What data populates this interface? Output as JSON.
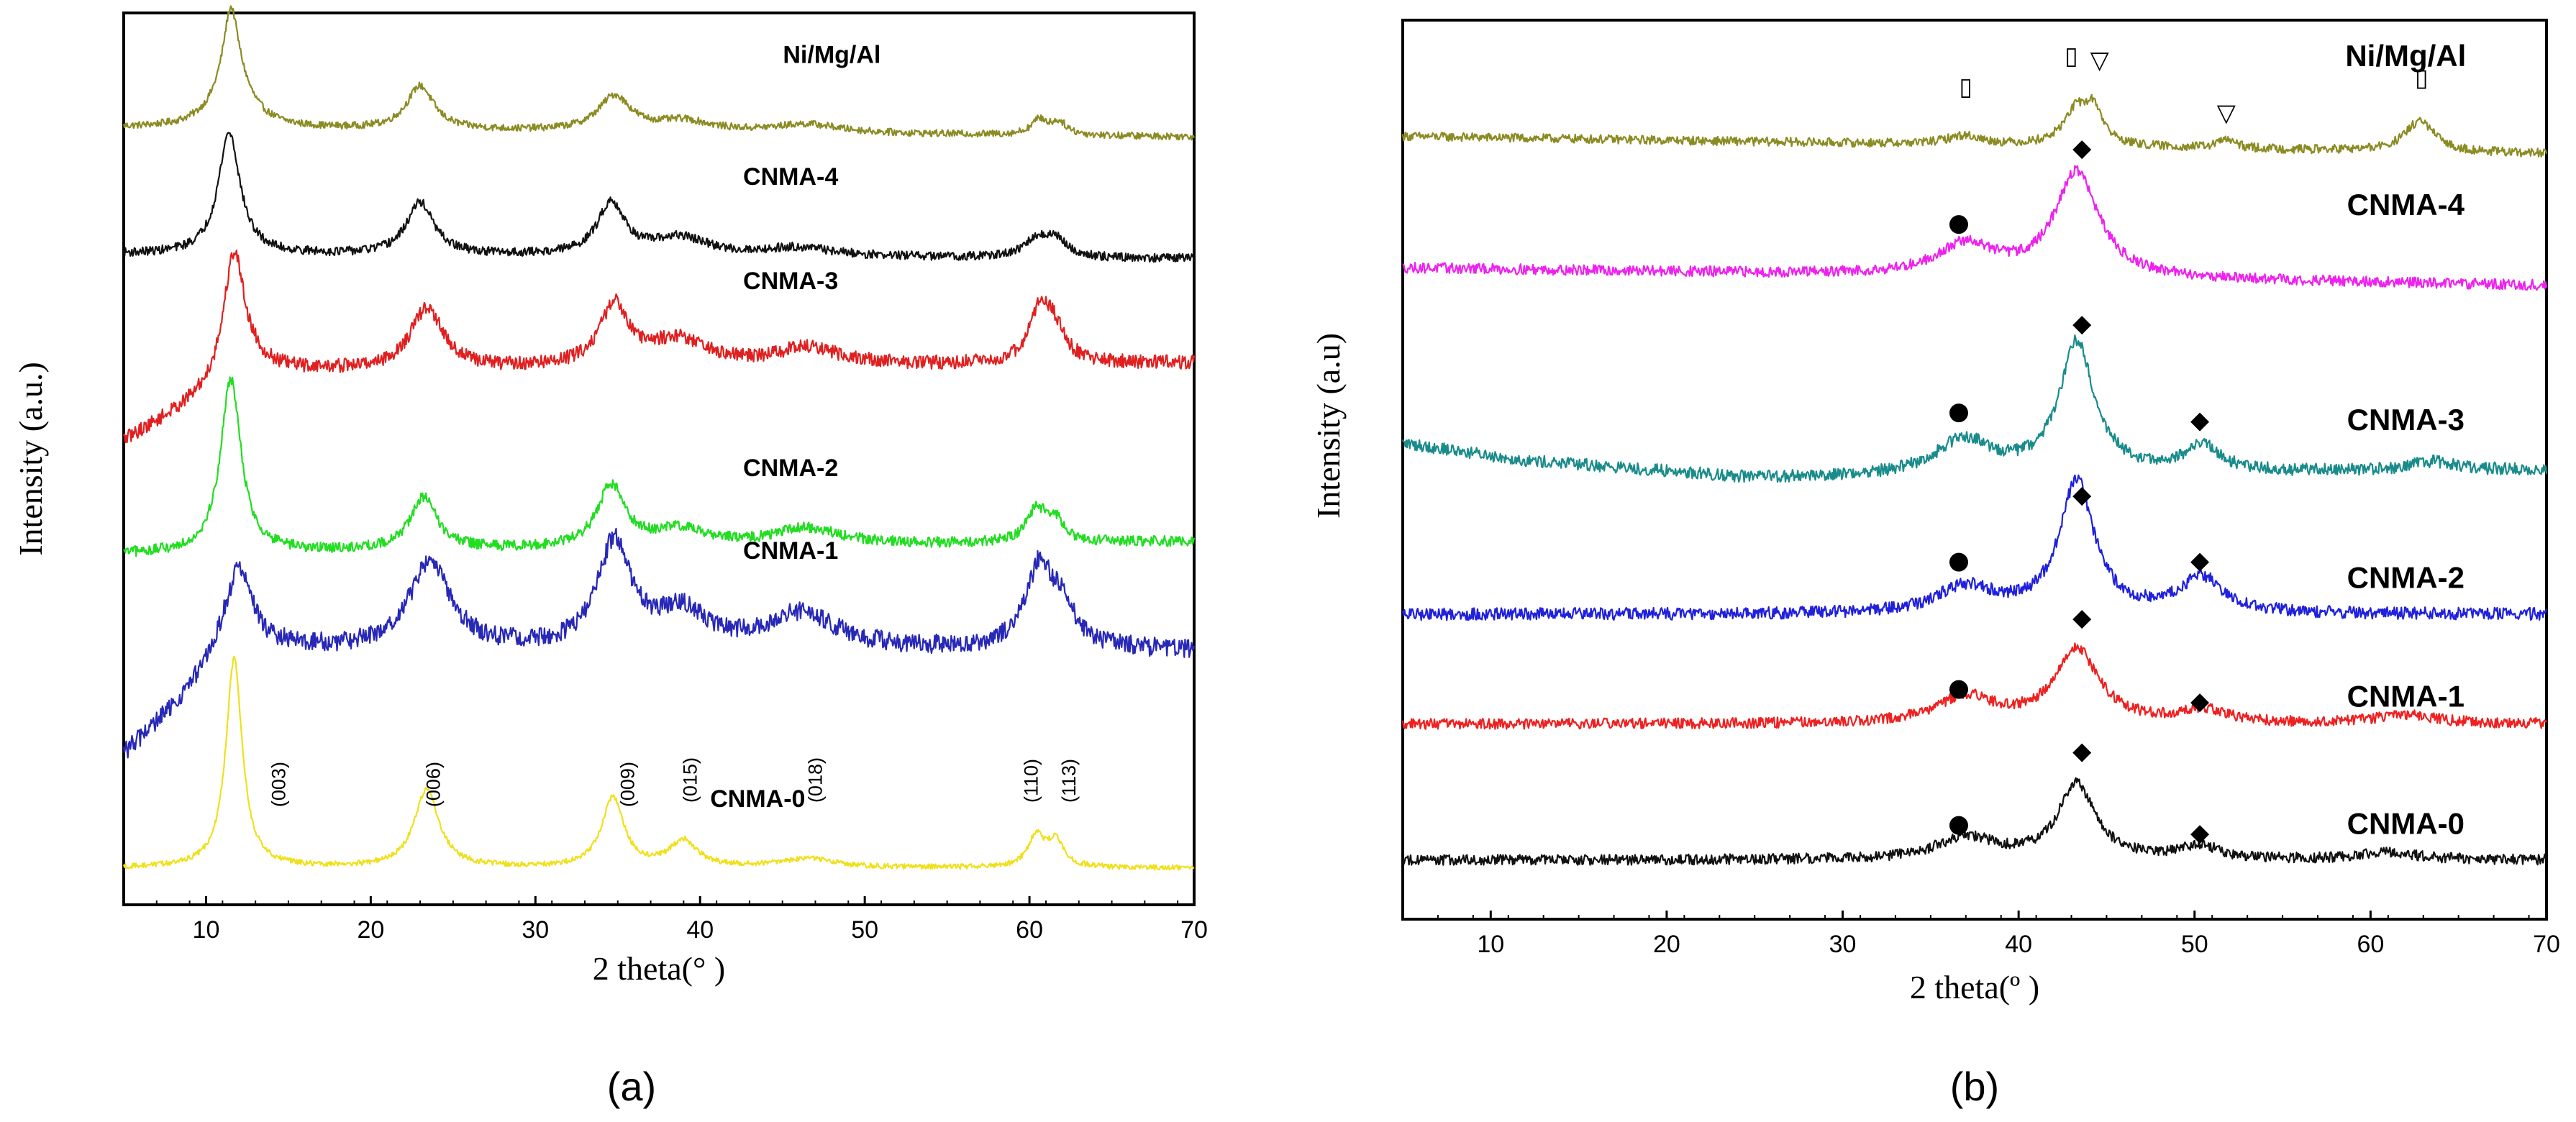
{
  "chart_data": [
    {
      "type": "line",
      "panel_label": "(a)",
      "xlabel": "2 theta(°  )",
      "ylabel": "Intensity (a.u.)",
      "xlim": [
        5,
        70
      ],
      "xticks": [
        10,
        20,
        30,
        40,
        50,
        60,
        70
      ],
      "tick_labels": [
        "10",
        "20",
        "30",
        "40",
        "50",
        "60",
        "70"
      ],
      "series": [
        {
          "name": "Ni/Mg/Al",
          "color": "#8b8b23",
          "baseline": 0.88,
          "noise": 0.004,
          "drift": [
            [
              5,
              0
            ],
            [
              70,
              -0.01
            ]
          ],
          "peaks": [
            [
              11.5,
              0.07,
              0.5
            ],
            [
              11.6,
              0.07,
              1.2
            ],
            [
              23.0,
              0.05,
              1.0
            ],
            [
              34.8,
              0.04,
              1.2
            ],
            [
              39.0,
              0.012,
              2.0
            ],
            [
              46.5,
              0.01,
              2.5
            ],
            [
              60.6,
              0.017,
              0.6
            ],
            [
              61.8,
              0.014,
              0.6
            ]
          ]
        },
        {
          "name": "CNMA-4",
          "color": "#111111",
          "baseline": 0.735,
          "noise": 0.005,
          "drift": [
            [
              5,
              0
            ],
            [
              70,
              -0.005
            ]
          ],
          "peaks": [
            [
              11.4,
              0.14,
              0.8
            ],
            [
              23.0,
              0.06,
              1.0
            ],
            [
              34.6,
              0.06,
              1.0
            ],
            [
              38.8,
              0.02,
              2.0
            ],
            [
              46.0,
              0.01,
              2.5
            ],
            [
              60.4,
              0.02,
              0.8
            ],
            [
              61.6,
              0.02,
              0.8
            ]
          ]
        },
        {
          "name": "CNMA-3",
          "color": "#e02020",
          "baseline": 0.61,
          "noise": 0.008,
          "drift": [
            [
              5,
              -0.09
            ],
            [
              9,
              -0.05
            ],
            [
              13,
              -0.01
            ],
            [
              70,
              0
            ]
          ],
          "peaks": [
            [
              11.7,
              0.15,
              0.8
            ],
            [
              23.4,
              0.07,
              1.2
            ],
            [
              34.8,
              0.07,
              1.1
            ],
            [
              38.7,
              0.03,
              2.0
            ],
            [
              46.5,
              0.02,
              2.5
            ],
            [
              60.6,
              0.055,
              0.8
            ],
            [
              61.5,
              0.035,
              0.8
            ]
          ]
        },
        {
          "name": "CNMA-2",
          "color": "#22dd22",
          "baseline": 0.4,
          "noise": 0.006,
          "drift": [
            [
              5,
              -0.01
            ],
            [
              70,
              0.005
            ]
          ],
          "peaks": [
            [
              11.5,
              0.2,
              0.75
            ],
            [
              23.2,
              0.06,
              1.0
            ],
            [
              34.6,
              0.07,
              1.0
            ],
            [
              38.8,
              0.02,
              2.0
            ],
            [
              46.5,
              0.02,
              2.5
            ],
            [
              60.4,
              0.035,
              0.7
            ],
            [
              61.5,
              0.025,
              0.7
            ]
          ]
        },
        {
          "name": "CNMA-1",
          "color": "#2828b8",
          "baseline": 0.28,
          "noise": 0.011,
          "drift": [
            [
              5,
              -0.12
            ],
            [
              8,
              -0.07
            ],
            [
              11,
              -0.01
            ],
            [
              15,
              0.0
            ],
            [
              70,
              0.0
            ]
          ],
          "peaks": [
            [
              12.0,
              0.1,
              1.0
            ],
            [
              23.6,
              0.1,
              1.5
            ],
            [
              34.8,
              0.12,
              1.2
            ],
            [
              38.9,
              0.04,
              2.0
            ],
            [
              46.2,
              0.04,
              2.5
            ],
            [
              60.6,
              0.09,
              1.0
            ],
            [
              62.0,
              0.04,
              1.0
            ]
          ]
        },
        {
          "name": "CNMA-0",
          "color": "#f0e01c",
          "baseline": 0.03,
          "noise": 0.003,
          "drift": [
            [
              5,
              0
            ],
            [
              70,
              0
            ]
          ],
          "peaks": [
            [
              11.7,
              0.24,
              0.6
            ],
            [
              23.4,
              0.09,
              0.9
            ],
            [
              34.7,
              0.08,
              0.8
            ],
            [
              39.0,
              0.03,
              1.0
            ],
            [
              46.5,
              0.01,
              2.0
            ],
            [
              60.4,
              0.035,
              0.6
            ],
            [
              61.6,
              0.03,
              0.6
            ]
          ]
        }
      ],
      "series_labels": [
        {
          "text": "Ni/Mg/Al",
          "x": 48.0,
          "y": 0.955,
          "big": false
        },
        {
          "text": "CNMA-4",
          "x": 45.5,
          "y": 0.815,
          "big": false
        },
        {
          "text": "CNMA-3",
          "x": 45.5,
          "y": 0.695,
          "big": false
        },
        {
          "text": "CNMA-2",
          "x": 45.5,
          "y": 0.48,
          "big": false
        },
        {
          "text": "CNMA-1",
          "x": 45.5,
          "y": 0.385,
          "big": false
        },
        {
          "text": "CNMA-0",
          "x": 43.5,
          "y": 0.1,
          "big": false
        }
      ],
      "annotations": [
        {
          "text": "(003)",
          "x": 14.8,
          "y": 0.1
        },
        {
          "text": "(006)",
          "x": 24.2,
          "y": 0.1
        },
        {
          "text": "(009)",
          "x": 36.0,
          "y": 0.1
        },
        {
          "text": "(015)",
          "x": 39.8,
          "y": 0.105
        },
        {
          "text": "(018)",
          "x": 47.4,
          "y": 0.105
        },
        {
          "text": "(110)",
          "x": 60.5,
          "y": 0.105
        },
        {
          "text": "(113)",
          "x": 62.8,
          "y": 0.105
        }
      ]
    },
    {
      "type": "line",
      "panel_label": "(b)",
      "xlabel": "2 theta(º  )",
      "ylabel": "Intensity (a.u)",
      "xlim": [
        5,
        70
      ],
      "xticks": [
        10,
        20,
        30,
        40,
        50,
        60,
        70
      ],
      "tick_labels": [
        "10",
        "20",
        "30",
        "40",
        "50",
        "60",
        "70"
      ],
      "series": [
        {
          "name": "Ni/Mg/Al",
          "color": "#8b8b23",
          "baseline": 0.88,
          "noise": 0.005,
          "drift": [
            [
              5,
              0
            ],
            [
              70,
              -0.02
            ]
          ],
          "peaks": [
            [
              36.9,
              0.01,
              1.2
            ],
            [
              43.3,
              0.04,
              0.9
            ],
            [
              44.3,
              0.035,
              0.6
            ],
            [
              51.8,
              0.01,
              0.6
            ],
            [
              62.8,
              0.035,
              1.0
            ]
          ]
        },
        {
          "name": "CNMA-4",
          "color": "#ee22ee",
          "baseline": 0.73,
          "noise": 0.006,
          "drift": [
            [
              5,
              0
            ],
            [
              70,
              -0.02
            ]
          ],
          "peaks": [
            [
              37.0,
              0.035,
              2.0
            ],
            [
              43.3,
              0.12,
              1.5
            ]
          ]
        },
        {
          "name": "CNMA-3",
          "color": "#1a8b8b",
          "baseline": 0.5,
          "noise": 0.007,
          "drift": [
            [
              5,
              0.03
            ],
            [
              12,
              0.01
            ],
            [
              25,
              -0.01
            ],
            [
              70,
              0.0
            ]
          ],
          "peaks": [
            [
              36.9,
              0.04,
              2.0
            ],
            [
              43.3,
              0.15,
              1.2
            ],
            [
              50.5,
              0.03,
              1.2
            ],
            [
              63.5,
              0.01,
              1.5
            ]
          ]
        },
        {
          "name": "CNMA-2",
          "color": "#2020dd",
          "baseline": 0.335,
          "noise": 0.007,
          "drift": [
            [
              5,
              0
            ],
            [
              70,
              0
            ]
          ],
          "peaks": [
            [
              37.0,
              0.03,
              2.0
            ],
            [
              43.3,
              0.15,
              1.2
            ],
            [
              50.4,
              0.04,
              1.5
            ]
          ]
        },
        {
          "name": "CNMA-1",
          "color": "#ee2020",
          "baseline": 0.21,
          "noise": 0.006,
          "drift": [
            [
              5,
              0
            ],
            [
              70,
              0
            ]
          ],
          "peaks": [
            [
              37.0,
              0.03,
              2.0
            ],
            [
              43.3,
              0.085,
              1.5
            ],
            [
              50.5,
              0.015,
              1.5
            ],
            [
              62.0,
              0.01,
              2.0
            ]
          ]
        },
        {
          "name": "CNMA-0",
          "color": "#111111",
          "baseline": 0.055,
          "noise": 0.006,
          "drift": [
            [
              5,
              0
            ],
            [
              70,
              0
            ]
          ],
          "peaks": [
            [
              37.0,
              0.025,
              2.0
            ],
            [
              43.3,
              0.085,
              1.3
            ],
            [
              50.3,
              0.015,
              1.3
            ],
            [
              61.0,
              0.008,
              2.0
            ]
          ]
        }
      ],
      "series_labels": [
        {
          "text": "Ni/Mg/Al",
          "x": 62.0,
          "y": 0.96,
          "big": true
        },
        {
          "text": "CNMA-4",
          "x": 62.0,
          "y": 0.79,
          "big": true
        },
        {
          "text": "CNMA-3",
          "x": 62.0,
          "y": 0.545,
          "big": true
        },
        {
          "text": "CNMA-2",
          "x": 62.0,
          "y": 0.365,
          "big": true
        },
        {
          "text": "CNMA-1",
          "x": 62.0,
          "y": 0.23,
          "big": true
        },
        {
          "text": "CNMA-0",
          "x": 62.0,
          "y": 0.085,
          "big": true
        }
      ],
      "markers": [
        {
          "symbol": "▯",
          "x": 37.0,
          "y": 0.935
        },
        {
          "symbol": "▯",
          "x": 43.0,
          "y": 0.97
        },
        {
          "symbol": "▽",
          "x": 44.6,
          "y": 0.965
        },
        {
          "symbol": "▽",
          "x": 51.8,
          "y": 0.905
        },
        {
          "symbol": "▯",
          "x": 62.9,
          "y": 0.945
        },
        {
          "symbol": "◆",
          "x": 43.6,
          "y": 0.865
        },
        {
          "symbol": "●",
          "x": 36.6,
          "y": 0.78
        },
        {
          "symbol": "◆",
          "x": 43.6,
          "y": 0.665
        },
        {
          "symbol": "●",
          "x": 36.6,
          "y": 0.565
        },
        {
          "symbol": "◆",
          "x": 50.3,
          "y": 0.555
        },
        {
          "symbol": "◆",
          "x": 43.6,
          "y": 0.47
        },
        {
          "symbol": "●",
          "x": 36.6,
          "y": 0.395
        },
        {
          "symbol": "◆",
          "x": 50.3,
          "y": 0.395
        },
        {
          "symbol": "◆",
          "x": 43.6,
          "y": 0.33
        },
        {
          "symbol": "●",
          "x": 36.6,
          "y": 0.25
        },
        {
          "symbol": "◆",
          "x": 50.3,
          "y": 0.235
        },
        {
          "symbol": "◆",
          "x": 43.6,
          "y": 0.178
        },
        {
          "symbol": "●",
          "x": 36.6,
          "y": 0.095
        },
        {
          "symbol": "◆",
          "x": 50.3,
          "y": 0.085
        }
      ]
    }
  ]
}
